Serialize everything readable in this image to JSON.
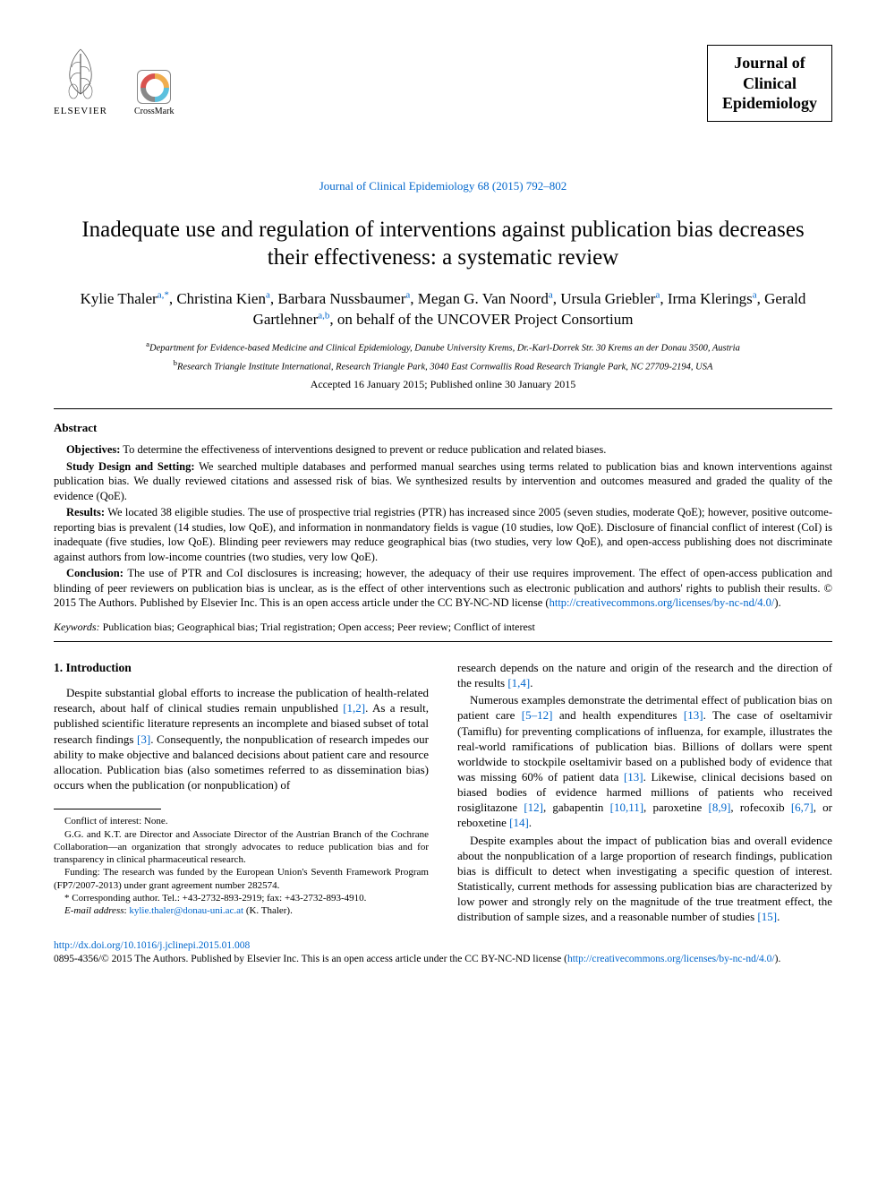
{
  "colors": {
    "link": "#0066cc",
    "text": "#000000",
    "background": "#ffffff",
    "rule": "#000000"
  },
  "typography": {
    "body_family": "Times New Roman",
    "title_size_pt": 25,
    "author_size_pt": 17,
    "body_size_pt": 13,
    "abstract_size_pt": 12.5,
    "footnote_size_pt": 11
  },
  "header": {
    "elsevier_label": "ELSEVIER",
    "crossmark_label": "CrossMark",
    "journal_citation": "Journal of Clinical Epidemiology 68 (2015) 792–802",
    "journal_box": {
      "line1": "Journal of",
      "line2": "Clinical",
      "line3": "Epidemiology"
    }
  },
  "title": "Inadequate use and regulation of interventions against publication bias decreases their effectiveness: a systematic review",
  "authors_html": "Kylie Thaler<sup>a,*</sup>, Christina Kien<sup>a</sup>, Barbara Nussbaumer<sup>a</sup>, Megan G. Van Noord<sup>a</sup>, Ursula Griebler<sup>a</sup>, Irma Klerings<sup>a</sup>, Gerald Gartlehner<sup>a,b</sup>, on behalf of the UNCOVER Project Consortium",
  "affiliations": {
    "a": "Department for Evidence-based Medicine and Clinical Epidemiology, Danube University Krems, Dr.-Karl-Dorrek Str. 30 Krems an der Donau 3500, Austria",
    "b": "Research Triangle Institute International, Research Triangle Park, 3040 East Cornwallis Road Research Triangle Park, NC 27709-2194, USA"
  },
  "dates": "Accepted 16 January 2015; Published online 30 January 2015",
  "abstract": {
    "heading": "Abstract",
    "objectives_label": "Objectives:",
    "objectives": " To determine the effectiveness of interventions designed to prevent or reduce publication and related biases.",
    "design_label": "Study Design and Setting:",
    "design": " We searched multiple databases and performed manual searches using terms related to publication bias and known interventions against publication bias. We dually reviewed citations and assessed risk of bias. We synthesized results by intervention and outcomes measured and graded the quality of the evidence (QoE).",
    "results_label": "Results:",
    "results": " We located 38 eligible studies. The use of prospective trial registries (PTR) has increased since 2005 (seven studies, moderate QoE); however, positive outcome-reporting bias is prevalent (14 studies, low QoE), and information in nonmandatory fields is vague (10 studies, low QoE). Disclosure of financial conflict of interest (CoI) is inadequate (five studies, low QoE). Blinding peer reviewers may reduce geographical bias (two studies, very low QoE), and open-access publishing does not discriminate against authors from low-income countries (two studies, very low QoE).",
    "conclusion_label": "Conclusion:",
    "conclusion_part1": " The use of PTR and CoI disclosures is increasing; however, the adequacy of their use requires improvement. The effect of open-access publication and blinding of peer reviewers on publication bias is unclear, as is the effect of other interventions such as electronic publication and authors' rights to publish their results.   © 2015 The Authors. Published by Elsevier Inc. This is an open access article under the CC BY-NC-ND license (",
    "conclusion_link": "http://creativecommons.org/licenses/by-nc-nd/4.0/",
    "conclusion_part2": ")."
  },
  "keywords": {
    "label": "Keywords:",
    "text": " Publication bias; Geographical bias; Trial registration; Open access; Peer review; Conflict of interest"
  },
  "intro": {
    "heading": "1.  Introduction",
    "p1_a": "Despite substantial global efforts to increase the publication of health-related research, about half of clinical studies remain unpublished ",
    "p1_cite1": "[1,2]",
    "p1_b": ". As a result, published scientific literature represents an incomplete and biased subset of total research findings ",
    "p1_cite2": "[3]",
    "p1_c": ". Consequently, the nonpublication of research impedes our ability to make objective and balanced decisions about patient care and resource allocation. Publication bias (also sometimes referred to as dissemination bias) occurs when the publication (or nonpublication) of ",
    "p1_cont_a": "research depends on the nature and origin of the research and the direction of the results ",
    "p1_cont_cite": "[1,4]",
    "p1_cont_b": ".",
    "p2_a": "Numerous examples demonstrate the detrimental effect of publication bias on patient care ",
    "p2_cite1": "[5–12]",
    "p2_b": " and health expenditures ",
    "p2_cite2": "[13]",
    "p2_c": ". The case of oseltamivir (Tamiflu) for preventing complications of influenza, for example, illustrates the real-world ramifications of publication bias. Billions of dollars were spent worldwide to stockpile oseltamivir based on a published body of evidence that was missing 60% of patient data ",
    "p2_cite3": "[13]",
    "p2_d": ". Likewise, clinical decisions based on biased bodies of evidence harmed millions of patients who received rosiglitazone ",
    "p2_cite4": "[12]",
    "p2_e": ", gabapentin ",
    "p2_cite5": "[10,11]",
    "p2_f": ", paroxetine ",
    "p2_cite6": "[8,9]",
    "p2_g": ", rofecoxib ",
    "p2_cite7": "[6,7]",
    "p2_h": ", or reboxetine ",
    "p2_cite8": "[14]",
    "p2_i": ".",
    "p3_a": "Despite examples about the impact of publication bias and overall evidence about the nonpublication of a large proportion of research findings, publication bias is difficult to detect when investigating a specific question of interest. Statistically, current methods for assessing publication bias are characterized by low power and strongly rely on the magnitude of the true treatment effect, the distribution of sample sizes, and a reasonable number of studies ",
    "p3_cite1": "[15]",
    "p3_b": "."
  },
  "footnotes": {
    "coi": "Conflict of interest: None.",
    "note1": "G.G. and K.T. are Director and Associate Director of the Austrian Branch of the Cochrane Collaboration—an organization that strongly advocates to reduce publication bias and for transparency in clinical pharmaceutical research.",
    "funding": "Funding: The research was funded by the European Union's Seventh Framework Program (FP7/2007-2013) under grant agreement number 282574.",
    "corresponding": "* Corresponding author. Tel.: +43-2732-893-2919; fax: +43-2732-893-4910.",
    "email_label": "E-mail address",
    "email": "kylie.thaler@donau-uni.ac.at",
    "email_name": " (K. Thaler)."
  },
  "bottom": {
    "doi": "http://dx.doi.org/10.1016/j.jclinepi.2015.01.008",
    "copyright_a": "0895-4356/© 2015 The Authors. Published by Elsevier Inc. This is an open access article under the CC BY-NC-ND license (",
    "copyright_link": "http://creativecommons.org/licenses/by-nc-nd/4.0/",
    "copyright_b": ")."
  }
}
